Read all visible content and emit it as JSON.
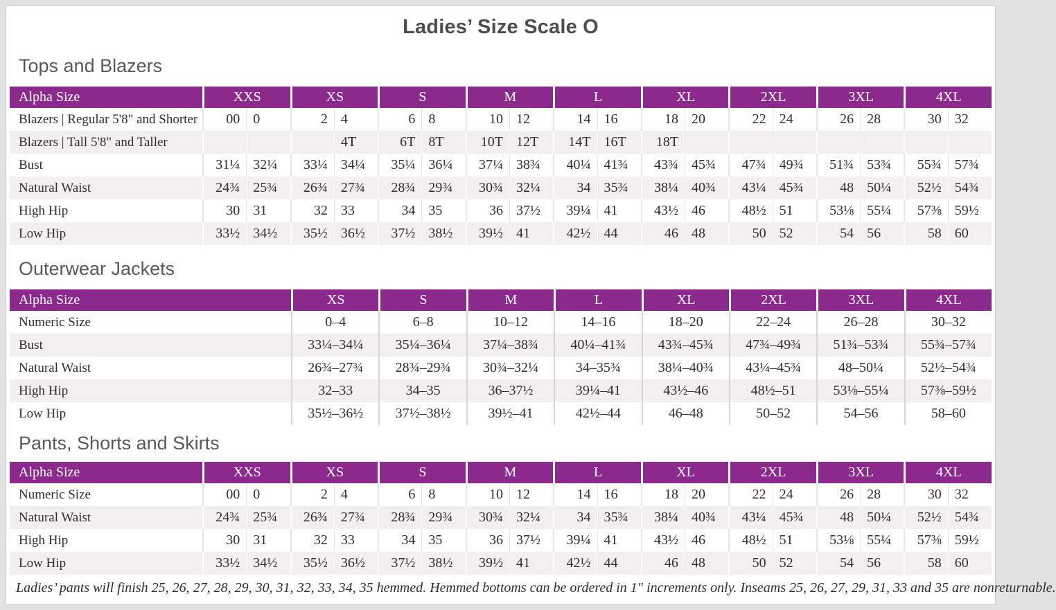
{
  "page": {
    "title": "Ladies’ Size Scale O",
    "footnote": "Ladies’ pants will finish 25, 26, 27, 28, 29, 30, 31, 32, 33, 34, 35 hemmed. Hemmed bottoms can be ordered in 1″ increments only. Inseams 25, 26, 27, 29, 31, 33 and 35 are nonreturnable."
  },
  "colors": {
    "accent_purple": "#8b2a8c",
    "row_stripe": "#f2f0ee",
    "body_text": "#312d28",
    "heading_text": "#595959",
    "title_text": "#4d4d4d",
    "header_text": "#ffffff"
  },
  "sections": [
    {
      "heading": "Tops and Blazers",
      "table": {
        "type": "paired",
        "corner_label": "Alpha Size",
        "columns": [
          "XXS",
          "XS",
          "S",
          "M",
          "L",
          "XL",
          "2XL",
          "3XL",
          "4XL"
        ],
        "rows": [
          {
            "label": "Blazers | Regular 5'8\" and Shorter",
            "values": [
              [
                "00",
                "0"
              ],
              [
                "2",
                "4"
              ],
              [
                "6",
                "8"
              ],
              [
                "10",
                "12"
              ],
              [
                "14",
                "16"
              ],
              [
                "18",
                "20"
              ],
              [
                "22",
                "24"
              ],
              [
                "26",
                "28"
              ],
              [
                "30",
                "32"
              ]
            ]
          },
          {
            "label": "Blazers | Tall 5'8\" and Taller",
            "values": [
              [
                "",
                ""
              ],
              [
                "",
                "4T"
              ],
              [
                "6T",
                "8T"
              ],
              [
                "10T",
                "12T"
              ],
              [
                "14T",
                "16T"
              ],
              [
                "18T",
                ""
              ],
              [
                "",
                ""
              ],
              [
                "",
                ""
              ],
              [
                "",
                ""
              ]
            ]
          },
          {
            "label": "Bust",
            "values": [
              [
                "31¼",
                "32¼"
              ],
              [
                "33¼",
                "34¼"
              ],
              [
                "35¼",
                "36¼"
              ],
              [
                "37¼",
                "38¾"
              ],
              [
                "40¼",
                "41¾"
              ],
              [
                "43¾",
                "45¾"
              ],
              [
                "47¾",
                "49¾"
              ],
              [
                "51¾",
                "53¾"
              ],
              [
                "55¾",
                "57¾"
              ]
            ]
          },
          {
            "label": "Natural Waist",
            "values": [
              [
                "24¾",
                "25¾"
              ],
              [
                "26¾",
                "27¾"
              ],
              [
                "28¾",
                "29¾"
              ],
              [
                "30¾",
                "32¼"
              ],
              [
                "34",
                "35¾"
              ],
              [
                "38¼",
                "40¾"
              ],
              [
                "43¼",
                "45¾"
              ],
              [
                "48",
                "50¼"
              ],
              [
                "52½",
                "54¾"
              ]
            ]
          },
          {
            "label": "High Hip",
            "values": [
              [
                "30",
                "31"
              ],
              [
                "32",
                "33"
              ],
              [
                "34",
                "35"
              ],
              [
                "36",
                "37½"
              ],
              [
                "39¼",
                "41"
              ],
              [
                "43½",
                "46"
              ],
              [
                "48½",
                "51"
              ],
              [
                "53⅛",
                "55¼"
              ],
              [
                "57⅜",
                "59½"
              ]
            ]
          },
          {
            "label": "Low Hip",
            "values": [
              [
                "33½",
                "34½"
              ],
              [
                "35½",
                "36½"
              ],
              [
                "37½",
                "38½"
              ],
              [
                "39½",
                "41"
              ],
              [
                "42½",
                "44"
              ],
              [
                "46",
                "48"
              ],
              [
                "50",
                "52"
              ],
              [
                "54",
                "56"
              ],
              [
                "58",
                "60"
              ]
            ]
          }
        ]
      }
    },
    {
      "heading": "Outerwear Jackets",
      "table": {
        "type": "single",
        "corner_label": "Alpha Size",
        "columns": [
          "XS",
          "S",
          "M",
          "L",
          "XL",
          "2XL",
          "3XL",
          "4XL"
        ],
        "rows": [
          {
            "label": "Numeric Size",
            "values": [
              "0–4",
              "6–8",
              "10–12",
              "14–16",
              "18–20",
              "22–24",
              "26–28",
              "30–32"
            ]
          },
          {
            "label": "Bust",
            "values": [
              "33¼–34¼",
              "35¼–36¼",
              "37¼–38¾",
              "40¼–41¾",
              "43¾–45¾",
              "47¾–49¾",
              "51¾–53¾",
              "55¾–57¾"
            ]
          },
          {
            "label": "Natural Waist",
            "values": [
              "26¾–27¾",
              "28¾–29¾",
              "30¾–32¼",
              "34–35¾",
              "38¼–40¾",
              "43¼–45¾",
              "48–50¼",
              "52½–54¾"
            ]
          },
          {
            "label": "High Hip",
            "values": [
              "32–33",
              "34–35",
              "36–37½",
              "39¼–41",
              "43½–46",
              "48½–51",
              "53⅛–55¼",
              "57⅜–59½"
            ]
          },
          {
            "label": "Low Hip",
            "values": [
              "35½–36½",
              "37½–38½",
              "39½–41",
              "42½–44",
              "46–48",
              "50–52",
              "54–56",
              "58–60"
            ]
          }
        ]
      }
    },
    {
      "heading": "Pants, Shorts and Skirts",
      "table": {
        "type": "paired",
        "corner_label": "Alpha Size",
        "columns": [
          "XXS",
          "XS",
          "S",
          "M",
          "L",
          "XL",
          "2XL",
          "3XL",
          "4XL"
        ],
        "rows": [
          {
            "label": "Numeric Size",
            "values": [
              [
                "00",
                "0"
              ],
              [
                "2",
                "4"
              ],
              [
                "6",
                "8"
              ],
              [
                "10",
                "12"
              ],
              [
                "14",
                "16"
              ],
              [
                "18",
                "20"
              ],
              [
                "22",
                "24"
              ],
              [
                "26",
                "28"
              ],
              [
                "30",
                "32"
              ]
            ]
          },
          {
            "label": "Natural Waist",
            "values": [
              [
                "24¾",
                "25¾"
              ],
              [
                "26¾",
                "27¾"
              ],
              [
                "28¾",
                "29¾"
              ],
              [
                "30¾",
                "32¼"
              ],
              [
                "34",
                "35¾"
              ],
              [
                "38¼",
                "40¾"
              ],
              [
                "43¼",
                "45¾"
              ],
              [
                "48",
                "50¼"
              ],
              [
                "52½",
                "54¾"
              ]
            ]
          },
          {
            "label": "High Hip",
            "values": [
              [
                "30",
                "31"
              ],
              [
                "32",
                "33"
              ],
              [
                "34",
                "35"
              ],
              [
                "36",
                "37½"
              ],
              [
                "39¼",
                "41"
              ],
              [
                "43½",
                "46"
              ],
              [
                "48½",
                "51"
              ],
              [
                "53⅛",
                "55¼"
              ],
              [
                "57⅜",
                "59½"
              ]
            ]
          },
          {
            "label": "Low Hip",
            "values": [
              [
                "33½",
                "34½"
              ],
              [
                "35½",
                "36½"
              ],
              [
                "37½",
                "38½"
              ],
              [
                "39½",
                "41"
              ],
              [
                "42½",
                "44"
              ],
              [
                "46",
                "48"
              ],
              [
                "50",
                "52"
              ],
              [
                "54",
                "56"
              ],
              [
                "58",
                "60"
              ]
            ]
          }
        ]
      }
    }
  ]
}
